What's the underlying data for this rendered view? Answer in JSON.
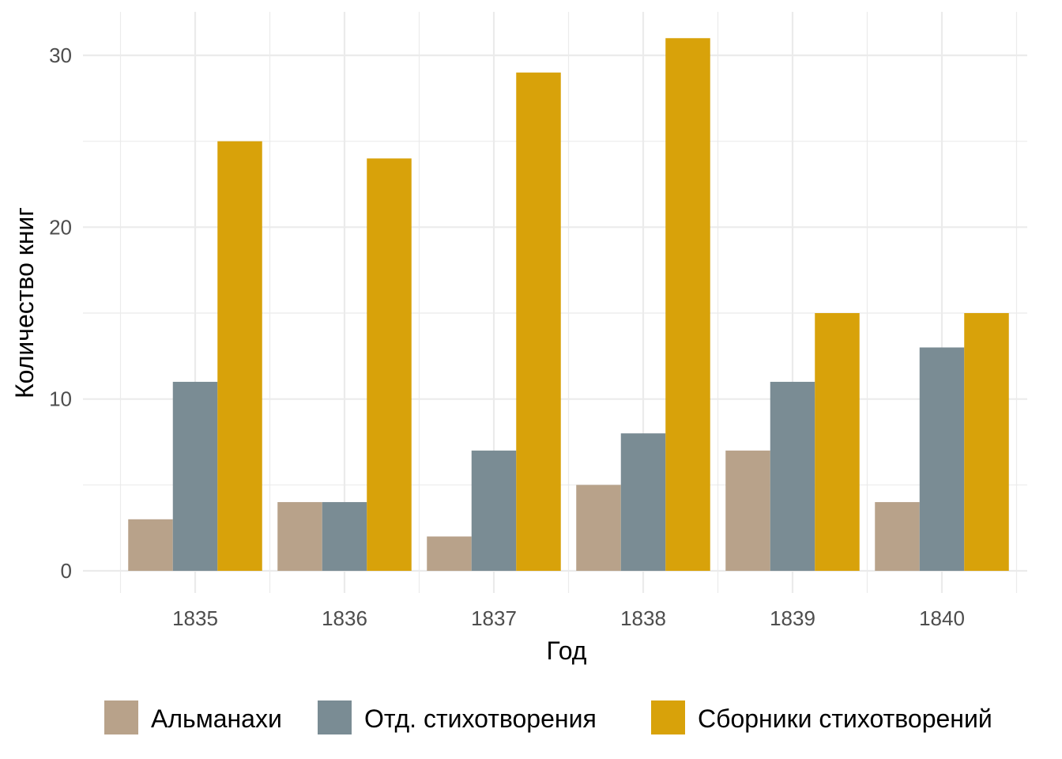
{
  "chart_data": {
    "type": "bar",
    "categories": [
      "1835",
      "1836",
      "1837",
      "1838",
      "1839",
      "1840"
    ],
    "series": [
      {
        "name": "Альманахи",
        "values": [
          3,
          4,
          2,
          5,
          7,
          4
        ],
        "color": "#B8A28A"
      },
      {
        "name": "Отд. стихотворения",
        "values": [
          11,
          4,
          7,
          8,
          11,
          13
        ],
        "color": "#7A8C94"
      },
      {
        "name": "Сборники стихотворений",
        "values": [
          25,
          24,
          29,
          31,
          15,
          15
        ],
        "color": "#D8A20A"
      }
    ],
    "xlabel": "Год",
    "ylabel": "Количество книг",
    "ylim": [
      0,
      32
    ],
    "yticks": [
      0,
      10,
      20,
      30
    ],
    "grid": true,
    "legend_position": "bottom"
  }
}
